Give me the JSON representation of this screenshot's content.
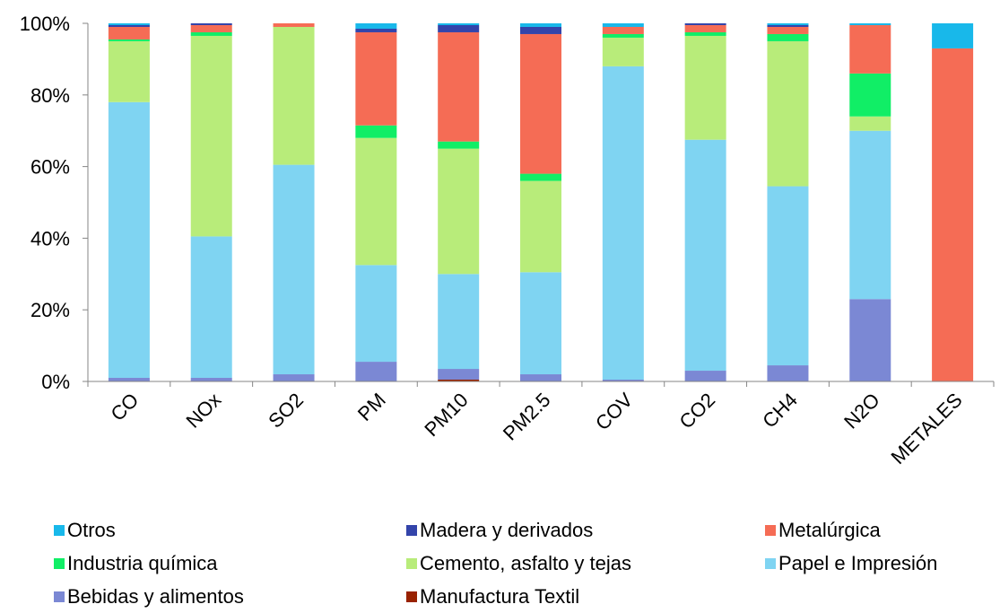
{
  "chart_data": {
    "type": "bar",
    "stacked": true,
    "percent": true,
    "title": "",
    "xlabel": "",
    "ylabel": "",
    "ylim": [
      0,
      100
    ],
    "yticks": [
      "0%",
      "20%",
      "40%",
      "60%",
      "80%",
      "100%"
    ],
    "grid": false,
    "legend_position": "bottom",
    "categories": [
      "CO",
      "NOx",
      "SO2",
      "PM",
      "PM10",
      "PM2.5",
      "COV",
      "CO2",
      "CH4",
      "N2O",
      "METALES"
    ],
    "series": [
      {
        "name": "Manufactura Textil",
        "color": "#992200",
        "values": [
          0.0,
          0.0,
          0.0,
          0.0,
          0.5,
          0.0,
          0.0,
          0.0,
          0.0,
          0.0,
          0.0
        ]
      },
      {
        "name": "Bebidas y alimentos",
        "color": "#7b88d4",
        "values": [
          1.0,
          1.0,
          2.0,
          5.5,
          3.0,
          2.0,
          0.5,
          3.0,
          4.5,
          23.0,
          0.0
        ]
      },
      {
        "name": "Papel e Impresión",
        "color": "#7fd4f2",
        "values": [
          77.0,
          39.5,
          58.5,
          27.0,
          26.5,
          28.5,
          87.5,
          64.5,
          50.0,
          47.0,
          0.0
        ]
      },
      {
        "name": "Cemento, asfalto y tejas",
        "color": "#b8ec7a",
        "values": [
          17.0,
          56.0,
          38.5,
          35.5,
          35.0,
          25.5,
          8.0,
          29.0,
          40.5,
          4.0,
          0.0
        ]
      },
      {
        "name": "Industria química",
        "color": "#11ee66",
        "values": [
          0.5,
          1.0,
          0.0,
          3.5,
          2.0,
          2.0,
          1.0,
          1.0,
          2.0,
          12.0,
          0.0
        ]
      },
      {
        "name": "Metalúrgica",
        "color": "#f56c55",
        "values": [
          3.5,
          2.0,
          1.0,
          26.0,
          30.5,
          39.0,
          2.0,
          2.0,
          2.0,
          13.5,
          93.0
        ]
      },
      {
        "name": "Madera y derivados",
        "color": "#3344aa",
        "values": [
          0.5,
          0.5,
          0.0,
          1.0,
          2.0,
          2.0,
          0.0,
          0.5,
          0.5,
          0.0,
          0.0
        ]
      },
      {
        "name": "Otros",
        "color": "#18b8ea",
        "values": [
          0.5,
          0.0,
          0.0,
          1.5,
          0.5,
          1.0,
          1.0,
          0.0,
          0.5,
          0.5,
          7.0
        ]
      }
    ]
  },
  "legend": {
    "rows": [
      [
        "Otros",
        "Madera y derivados",
        "Metalúrgica"
      ],
      [
        "Industria química",
        "Cemento, asfalto y tejas",
        "Papel e Impresión"
      ],
      [
        "Bebidas y alimentos",
        "Manufactura Textil"
      ]
    ]
  }
}
